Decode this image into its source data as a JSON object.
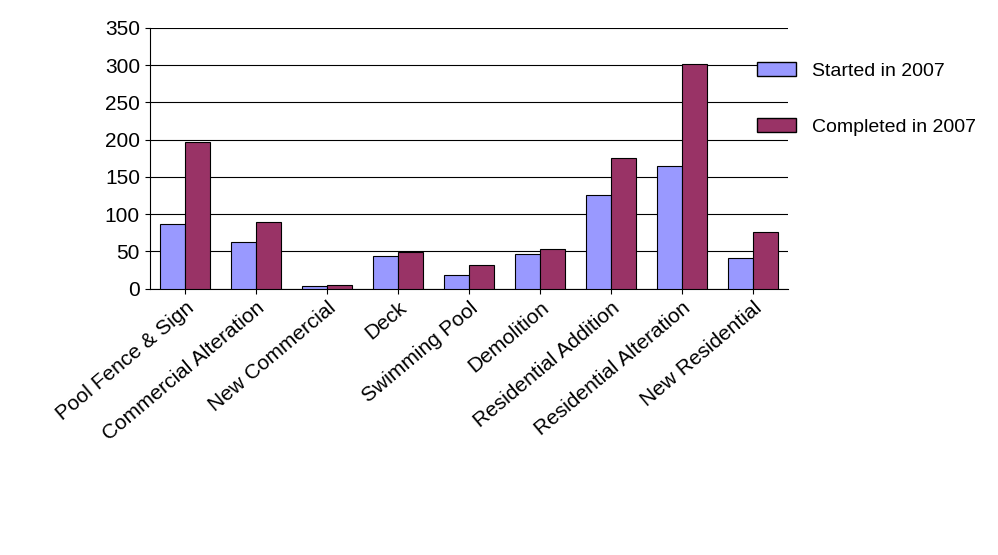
{
  "chart_data": {
    "type": "bar",
    "categories": [
      "Pool Fence & Sign",
      "Commercial Alteration",
      "New Commercial",
      "Deck",
      "Swimming Pool",
      "Demolition",
      "Residential Addition",
      "Residential Alteration",
      "New Residential"
    ],
    "series": [
      {
        "name": "Started in 2007",
        "color": "#9999ff",
        "values": [
          87,
          63,
          4,
          44,
          18,
          47,
          126,
          164,
          41
        ]
      },
      {
        "name": "Completed in 2007",
        "color": "#993366",
        "values": [
          197,
          89,
          5,
          49,
          31,
          53,
          175,
          302,
          76
        ]
      }
    ],
    "ylim": [
      0,
      350
    ],
    "yticks": [
      0,
      50,
      100,
      150,
      200,
      250,
      300,
      350
    ],
    "grid": true,
    "legend": "upper right"
  }
}
